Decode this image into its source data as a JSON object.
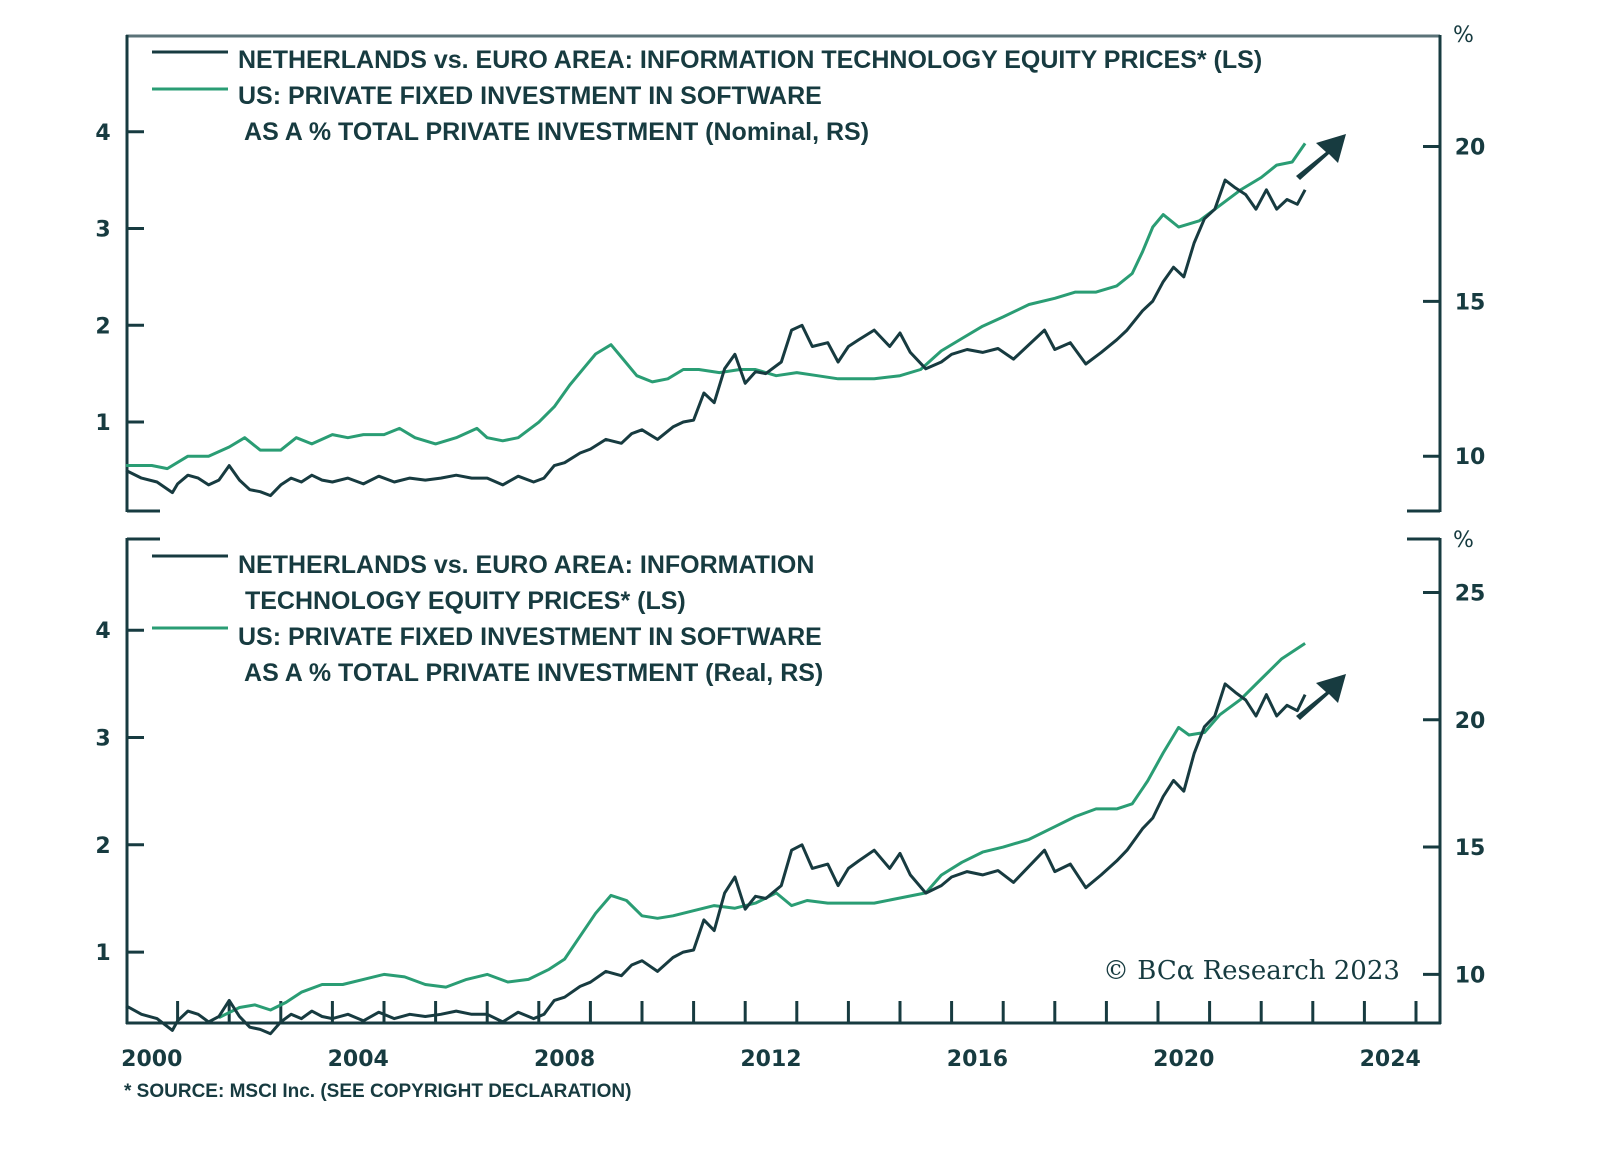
{
  "chart_data": [
    {
      "type": "line",
      "panel": "top",
      "legend": [
        {
          "name": "NETHERLANDS vs. EURO AREA: INFORMATION TECHNOLOGY EQUITY PRICES* (LS)",
          "lines": [
            "NETHERLANDS vs. EURO AREA: INFORMATION TECHNOLOGY EQUITY PRICES* (LS)"
          ],
          "color": "#173b40"
        },
        {
          "name": "US: PRIVATE FIXED INVESTMENT IN SOFTWARE AS A % TOTAL PRIVATE INVESTMENT (Nominal, RS)",
          "lines": [
            "US: PRIVATE FIXED INVESTMENT IN SOFTWARE",
            " AS A % TOTAL PRIVATE INVESTMENT (Nominal, RS)"
          ],
          "color": "#2a9d74"
        }
      ],
      "left_axis": {
        "ticks": [
          1,
          2,
          3,
          4
        ],
        "range": [
          0.07,
          5.0
        ]
      },
      "right_axis": {
        "label": "%",
        "ticks": [
          10,
          15,
          20
        ],
        "range": [
          8.2,
          23.6
        ]
      },
      "series": [
        {
          "name": "Netherlands vs. Euro Area IT equity prices",
          "axis": "left",
          "color": "#173b40",
          "x": [
            2000.0,
            2000.3,
            2000.6,
            2000.9,
            2001.0,
            2001.2,
            2001.4,
            2001.6,
            2001.8,
            2002.0,
            2002.2,
            2002.4,
            2002.6,
            2002.8,
            2003.0,
            2003.2,
            2003.4,
            2003.6,
            2003.8,
            2004.0,
            2004.3,
            2004.6,
            2004.9,
            2005.2,
            2005.5,
            2005.8,
            2006.1,
            2006.4,
            2006.7,
            2007.0,
            2007.3,
            2007.6,
            2007.9,
            2008.1,
            2008.3,
            2008.5,
            2008.8,
            2009.0,
            2009.3,
            2009.6,
            2009.8,
            2010.0,
            2010.3,
            2010.6,
            2010.8,
            2011.0,
            2011.2,
            2011.4,
            2011.6,
            2011.8,
            2012.0,
            2012.2,
            2012.4,
            2012.7,
            2012.9,
            2013.1,
            2013.3,
            2013.6,
            2013.8,
            2014.0,
            2014.2,
            2014.5,
            2014.8,
            2015.0,
            2015.2,
            2015.5,
            2015.8,
            2016.0,
            2016.3,
            2016.6,
            2016.9,
            2017.2,
            2017.5,
            2017.8,
            2018.0,
            2018.3,
            2018.6,
            2018.9,
            2019.2,
            2019.4,
            2019.7,
            2019.9,
            2020.1,
            2020.3,
            2020.5,
            2020.7,
            2020.9,
            2021.1,
            2021.3,
            2021.5,
            2021.7,
            2021.9,
            2022.1,
            2022.3,
            2022.5,
            2022.7,
            2022.85
          ],
          "values": [
            0.5,
            0.42,
            0.38,
            0.27,
            0.36,
            0.45,
            0.42,
            0.35,
            0.4,
            0.55,
            0.4,
            0.3,
            0.28,
            0.24,
            0.35,
            0.42,
            0.38,
            0.45,
            0.4,
            0.38,
            0.42,
            0.36,
            0.44,
            0.38,
            0.42,
            0.4,
            0.42,
            0.45,
            0.42,
            0.42,
            0.35,
            0.44,
            0.38,
            0.42,
            0.55,
            0.58,
            0.68,
            0.72,
            0.82,
            0.78,
            0.88,
            0.92,
            0.82,
            0.95,
            1.0,
            1.02,
            1.3,
            1.2,
            1.55,
            1.7,
            1.4,
            1.52,
            1.5,
            1.62,
            1.95,
            2.0,
            1.78,
            1.82,
            1.62,
            1.78,
            1.85,
            1.95,
            1.78,
            1.92,
            1.72,
            1.55,
            1.62,
            1.7,
            1.75,
            1.72,
            1.76,
            1.65,
            1.8,
            1.95,
            1.75,
            1.82,
            1.6,
            1.72,
            1.85,
            1.95,
            2.15,
            2.25,
            2.45,
            2.6,
            2.5,
            2.85,
            3.1,
            3.2,
            3.5,
            3.42,
            3.35,
            3.2,
            3.4,
            3.2,
            3.3,
            3.25,
            3.4
          ]
        },
        {
          "name": "US private fixed investment in software, % of total (Nominal)",
          "axis": "right",
          "color": "#2a9d74",
          "x": [
            2000.0,
            2000.5,
            2000.8,
            2001.2,
            2001.6,
            2002.0,
            2002.3,
            2002.6,
            2003.0,
            2003.3,
            2003.6,
            2004.0,
            2004.3,
            2004.6,
            2005.0,
            2005.3,
            2005.6,
            2006.0,
            2006.4,
            2006.8,
            2007.0,
            2007.3,
            2007.6,
            2008.0,
            2008.3,
            2008.6,
            2008.9,
            2009.1,
            2009.4,
            2009.6,
            2009.9,
            2010.2,
            2010.5,
            2010.8,
            2011.1,
            2011.5,
            2011.9,
            2012.2,
            2012.6,
            2013.0,
            2013.4,
            2013.8,
            2014.5,
            2015.0,
            2015.4,
            2015.8,
            2016.2,
            2016.6,
            2017.0,
            2017.5,
            2018.0,
            2018.4,
            2018.8,
            2019.2,
            2019.5,
            2019.7,
            2019.9,
            2020.1,
            2020.4,
            2020.6,
            2020.8,
            2021.2,
            2021.6,
            2022.0,
            2022.3,
            2022.6,
            2022.85
          ],
          "values": [
            9.7,
            9.7,
            9.6,
            10.0,
            10.0,
            10.3,
            10.6,
            10.2,
            10.2,
            10.6,
            10.4,
            10.7,
            10.6,
            10.7,
            10.7,
            10.9,
            10.6,
            10.4,
            10.6,
            10.9,
            10.6,
            10.5,
            10.6,
            11.1,
            11.6,
            12.3,
            12.9,
            13.3,
            13.6,
            13.2,
            12.6,
            12.4,
            12.5,
            12.8,
            12.8,
            12.7,
            12.8,
            12.8,
            12.6,
            12.7,
            12.6,
            12.5,
            12.5,
            12.6,
            12.8,
            13.4,
            13.8,
            14.2,
            14.5,
            14.9,
            15.1,
            15.3,
            15.3,
            15.5,
            15.9,
            16.6,
            17.4,
            17.8,
            17.4,
            17.5,
            17.6,
            18.1,
            18.6,
            19.0,
            19.4,
            19.5,
            20.1
          ]
        }
      ],
      "annotations": [
        "up-arrow"
      ]
    },
    {
      "type": "line",
      "panel": "bottom",
      "legend": [
        {
          "name": "NETHERLANDS vs. EURO AREA: INFORMATION TECHNOLOGY EQUITY PRICES* (LS)",
          "lines": [
            "NETHERLANDS vs. EURO AREA: INFORMATION",
            " TECHNOLOGY EQUITY PRICES* (LS)"
          ],
          "color": "#173b40"
        },
        {
          "name": "US: PRIVATE FIXED INVESTMENT IN SOFTWARE AS A % TOTAL PRIVATE INVESTMENT (Real, RS)",
          "lines": [
            "US: PRIVATE FIXED INVESTMENT IN SOFTWARE",
            " AS A % TOTAL PRIVATE INVESTMENT (Real, RS)"
          ],
          "color": "#2a9d74"
        }
      ],
      "left_axis": {
        "ticks": [
          1,
          2,
          3,
          4
        ],
        "range": [
          0.33,
          4.85
        ]
      },
      "right_axis": {
        "label": "%",
        "ticks": [
          10,
          15,
          20,
          25
        ],
        "range": [
          8.05,
          27.1
        ]
      },
      "series": [
        {
          "name": "Netherlands vs. Euro Area IT equity prices",
          "axis": "left",
          "color": "#173b40",
          "same_as": "top"
        },
        {
          "name": "US private fixed investment in software, % of total (Real)",
          "axis": "right",
          "color": "#2a9d74",
          "x": [
            2001.8,
            2002.2,
            2002.5,
            2002.8,
            2003.1,
            2003.4,
            2003.8,
            2004.2,
            2004.6,
            2005.0,
            2005.4,
            2005.8,
            2006.2,
            2006.6,
            2007.0,
            2007.4,
            2007.8,
            2008.2,
            2008.5,
            2008.8,
            2009.1,
            2009.4,
            2009.7,
            2010.0,
            2010.3,
            2010.6,
            2011.0,
            2011.4,
            2011.8,
            2012.2,
            2012.6,
            2012.9,
            2013.2,
            2013.6,
            2014.0,
            2014.5,
            2015.0,
            2015.5,
            2015.8,
            2016.2,
            2016.6,
            2017.0,
            2017.5,
            2018.0,
            2018.4,
            2018.8,
            2019.2,
            2019.5,
            2019.8,
            2020.1,
            2020.4,
            2020.6,
            2020.9,
            2021.2,
            2021.6,
            2022.0,
            2022.4,
            2022.85
          ],
          "values": [
            8.3,
            8.7,
            8.8,
            8.6,
            8.9,
            9.3,
            9.6,
            9.6,
            9.8,
            10.0,
            9.9,
            9.6,
            9.5,
            9.8,
            10.0,
            9.7,
            9.8,
            10.2,
            10.6,
            11.5,
            12.4,
            13.1,
            12.9,
            12.3,
            12.2,
            12.3,
            12.5,
            12.7,
            12.6,
            12.8,
            13.2,
            12.7,
            12.9,
            12.8,
            12.8,
            12.8,
            13.0,
            13.2,
            13.9,
            14.4,
            14.8,
            15.0,
            15.3,
            15.8,
            16.2,
            16.5,
            16.5,
            16.7,
            17.6,
            18.7,
            19.7,
            19.4,
            19.5,
            20.2,
            20.8,
            21.6,
            22.4,
            23.0
          ]
        }
      ],
      "annotations": [
        "up-arrow"
      ]
    }
  ],
  "x_axis": {
    "labels": [
      "2000",
      "2004",
      "2008",
      "2012",
      "2016",
      "2020",
      "2024"
    ],
    "range": [
      2000.0,
      2025.5
    ]
  },
  "copyright": "© BCα Research 2023",
  "footnote": "* SOURCE: MSCI Inc. (SEE COPYRIGHT DECLARATION)"
}
